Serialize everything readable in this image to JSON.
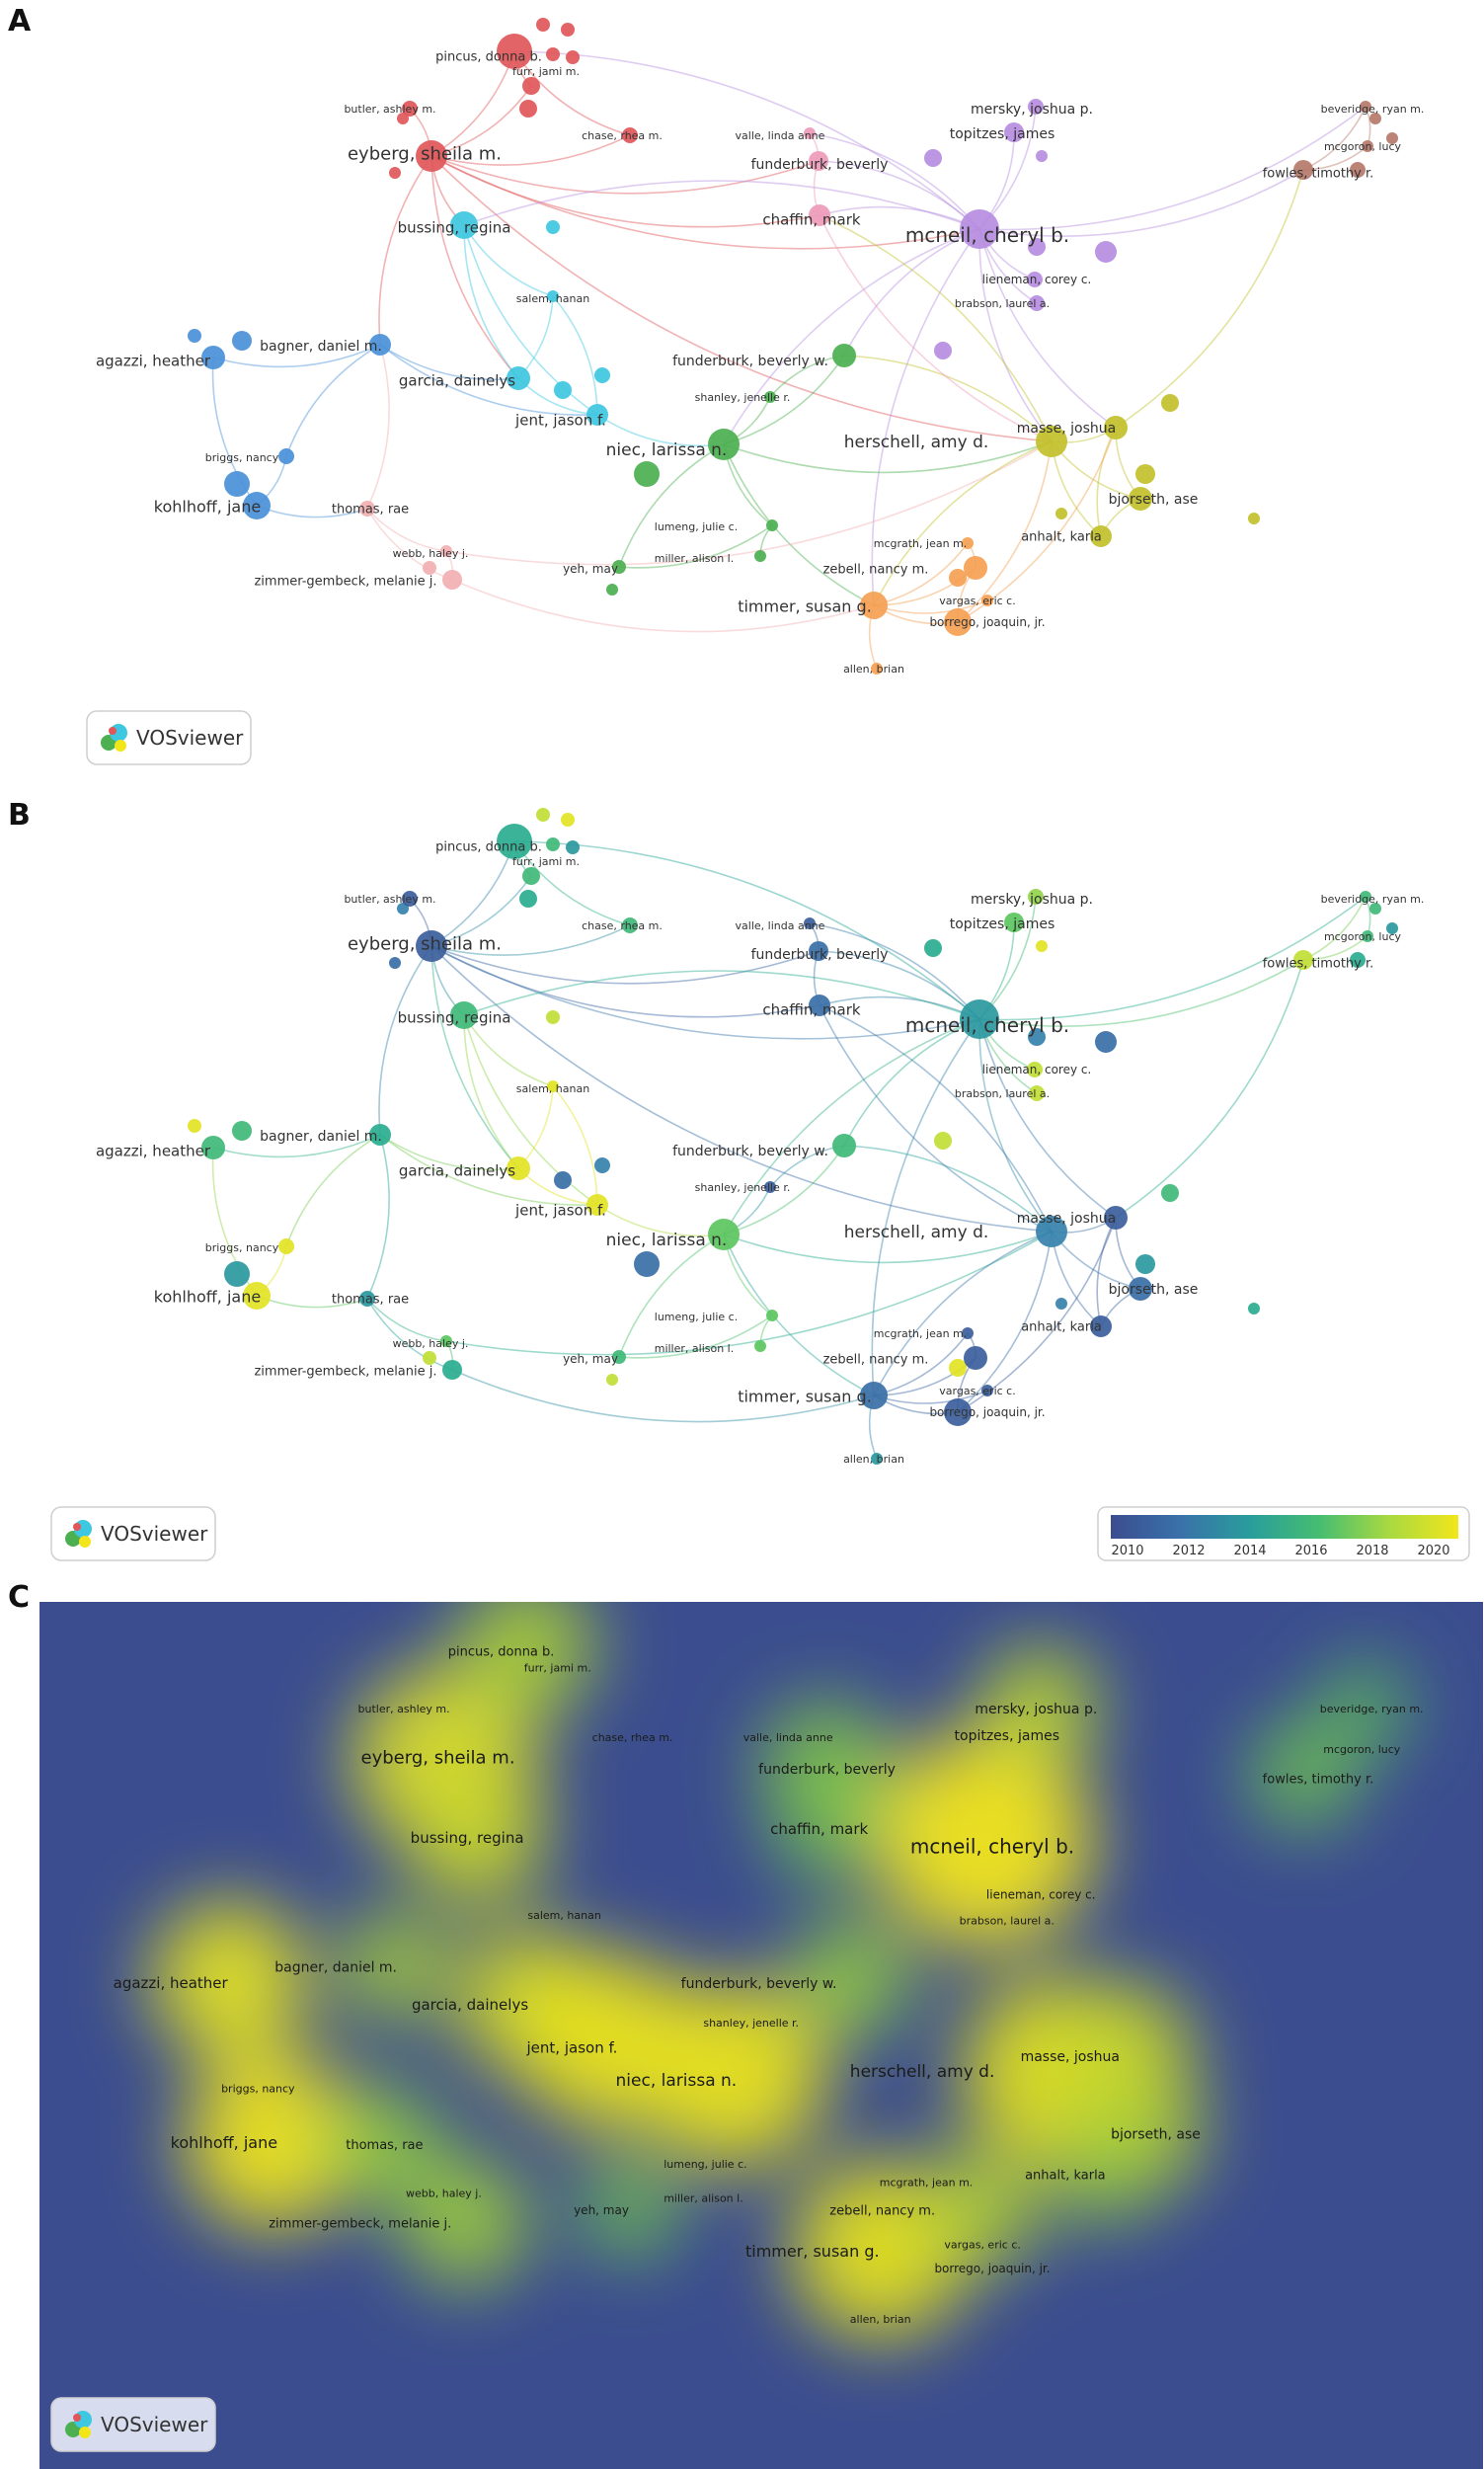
{
  "panels": [
    {
      "letter": "A",
      "logo_text": "VOSviewer"
    },
    {
      "letter": "B",
      "logo_text": "VOSviewer"
    },
    {
      "letter": "C",
      "logo_text": "VOSviewer"
    }
  ],
  "colorbar": {
    "ticks": [
      "2010",
      "2012",
      "2014",
      "2016",
      "2018",
      "2020"
    ]
  },
  "colors": {
    "red": "#e15759",
    "purple": "#b68de0",
    "cyan": "#3ec7e0",
    "blue": "#4a90d9",
    "green": "#4cb050",
    "olive": "#c2c02a",
    "orange": "#f5a052",
    "pink": "#ee9ab8",
    "brown": "#b5796a",
    "lightpink": "#f2b0b2",
    "density_low": "#3b4d8f",
    "density_high": "#f2e61b"
  },
  "nodes": [
    {
      "id": "pincus",
      "label": "pincus, donna b.",
      "cluster": "red",
      "weight": 2,
      "year": 2015
    },
    {
      "id": "furr",
      "label": "furr, jami m.",
      "cluster": "red",
      "weight": 1,
      "year": 2016
    },
    {
      "id": "butler",
      "label": "butler, ashley m.",
      "cluster": "red",
      "weight": 1,
      "year": 2011
    },
    {
      "id": "eyberg",
      "label": "eyberg, sheila m.",
      "cluster": "red",
      "weight": 4,
      "year": 2011
    },
    {
      "id": "chase",
      "label": "chase, rhea m.",
      "cluster": "red",
      "weight": 1,
      "year": 2016
    },
    {
      "id": "valle",
      "label": "valle, linda anne",
      "cluster": "pink",
      "weight": 1,
      "year": 2011
    },
    {
      "id": "funderburkb",
      "label": "funderburk, beverly",
      "cluster": "pink",
      "weight": 2,
      "year": 2012
    },
    {
      "id": "chaffin",
      "label": "chaffin, mark",
      "cluster": "pink",
      "weight": 2,
      "year": 2012
    },
    {
      "id": "mersky",
      "label": "mersky, joshua p.",
      "cluster": "purple",
      "weight": 2,
      "year": 2018
    },
    {
      "id": "topitzes",
      "label": "topitzes, james",
      "cluster": "purple",
      "weight": 2,
      "year": 2017
    },
    {
      "id": "mcneil",
      "label": "mcneil, cheryl b.",
      "cluster": "purple",
      "weight": 5,
      "year": 2014
    },
    {
      "id": "lieneman",
      "label": "lieneman, corey c.",
      "cluster": "purple",
      "weight": 1,
      "year": 2019
    },
    {
      "id": "brabson",
      "label": "brabson, laurel a.",
      "cluster": "purple",
      "weight": 1,
      "year": 2019
    },
    {
      "id": "beveridge",
      "label": "beveridge, ryan m.",
      "cluster": "brown",
      "weight": 1,
      "year": 2016
    },
    {
      "id": "mcgoron",
      "label": "mcgoron, lucy",
      "cluster": "brown",
      "weight": 1,
      "year": 2016
    },
    {
      "id": "fowles",
      "label": "fowles, timothy r.",
      "cluster": "brown",
      "weight": 2,
      "year": 2019
    },
    {
      "id": "bussing",
      "label": "bussing, regina",
      "cluster": "cyan",
      "weight": 3,
      "year": 2016
    },
    {
      "id": "salem",
      "label": "salem, hanan",
      "cluster": "cyan",
      "weight": 1,
      "year": 2020
    },
    {
      "id": "garcia",
      "label": "garcia, dainelys",
      "cluster": "cyan",
      "weight": 3,
      "year": 2020
    },
    {
      "id": "jent",
      "label": "jent, jason f.",
      "cluster": "cyan",
      "weight": 3,
      "year": 2020
    },
    {
      "id": "agazzi",
      "label": "agazzi, heather",
      "cluster": "blue",
      "weight": 3,
      "year": 2016
    },
    {
      "id": "bagner",
      "label": "bagner, daniel m.",
      "cluster": "blue",
      "weight": 2,
      "year": 2015
    },
    {
      "id": "briggs",
      "label": "briggs, nancy",
      "cluster": "blue",
      "weight": 1,
      "year": 2020
    },
    {
      "id": "kohlhoff",
      "label": "kohlhoff, jane",
      "cluster": "blue",
      "weight": 4,
      "year": 2020
    },
    {
      "id": "funderburkw",
      "label": "funderburk, beverly w.",
      "cluster": "green",
      "weight": 2,
      "year": 2016
    },
    {
      "id": "shanley",
      "label": "shanley, jenelle r.",
      "cluster": "green",
      "weight": 1,
      "year": 2011
    },
    {
      "id": "niec",
      "label": "niec, larissa n.",
      "cluster": "green",
      "weight": 4,
      "year": 2017
    },
    {
      "id": "lumeng",
      "label": "lumeng, julie c.",
      "cluster": "green",
      "weight": 1,
      "year": 2017
    },
    {
      "id": "miller",
      "label": "miller, alison l.",
      "cluster": "green",
      "weight": 1,
      "year": 2017
    },
    {
      "id": "yeh",
      "label": "yeh, may",
      "cluster": "green",
      "weight": 1,
      "year": 2016
    },
    {
      "id": "thomas",
      "label": "thomas, rae",
      "cluster": "lightpink",
      "weight": 2,
      "year": 2014
    },
    {
      "id": "webb",
      "label": "webb, haley j.",
      "cluster": "lightpink",
      "weight": 1,
      "year": 2017
    },
    {
      "id": "zimmer",
      "label": "zimmer-gembeck, melanie j.",
      "cluster": "lightpink",
      "weight": 2,
      "year": 2015
    },
    {
      "id": "herschell",
      "label": "herschell, amy d.",
      "cluster": "olive",
      "weight": 4,
      "year": 2013
    },
    {
      "id": "masse",
      "label": "masse, joshua",
      "cluster": "olive",
      "weight": 2,
      "year": 2011
    },
    {
      "id": "bjorseth",
      "label": "bjorseth, ase",
      "cluster": "olive",
      "weight": 2,
      "year": 2012
    },
    {
      "id": "anhalt",
      "label": "anhalt, karla",
      "cluster": "olive",
      "weight": 1,
      "year": 2011
    },
    {
      "id": "mcgrath",
      "label": "mcgrath, jean m.",
      "cluster": "orange",
      "weight": 1,
      "year": 2011
    },
    {
      "id": "zebell",
      "label": "zebell, nancy m.",
      "cluster": "orange",
      "weight": 2,
      "year": 2011
    },
    {
      "id": "timmer",
      "label": "timmer, susan g.",
      "cluster": "orange",
      "weight": 4,
      "year": 2012
    },
    {
      "id": "vargas",
      "label": "vargas, eric c.",
      "cluster": "orange",
      "weight": 1,
      "year": 2011
    },
    {
      "id": "borrego",
      "label": "borrego, joaquin, jr.",
      "cluster": "orange",
      "weight": 2,
      "year": 2011
    },
    {
      "id": "allen",
      "label": "allen, brian",
      "cluster": "orange",
      "weight": 1,
      "year": 2014
    }
  ]
}
